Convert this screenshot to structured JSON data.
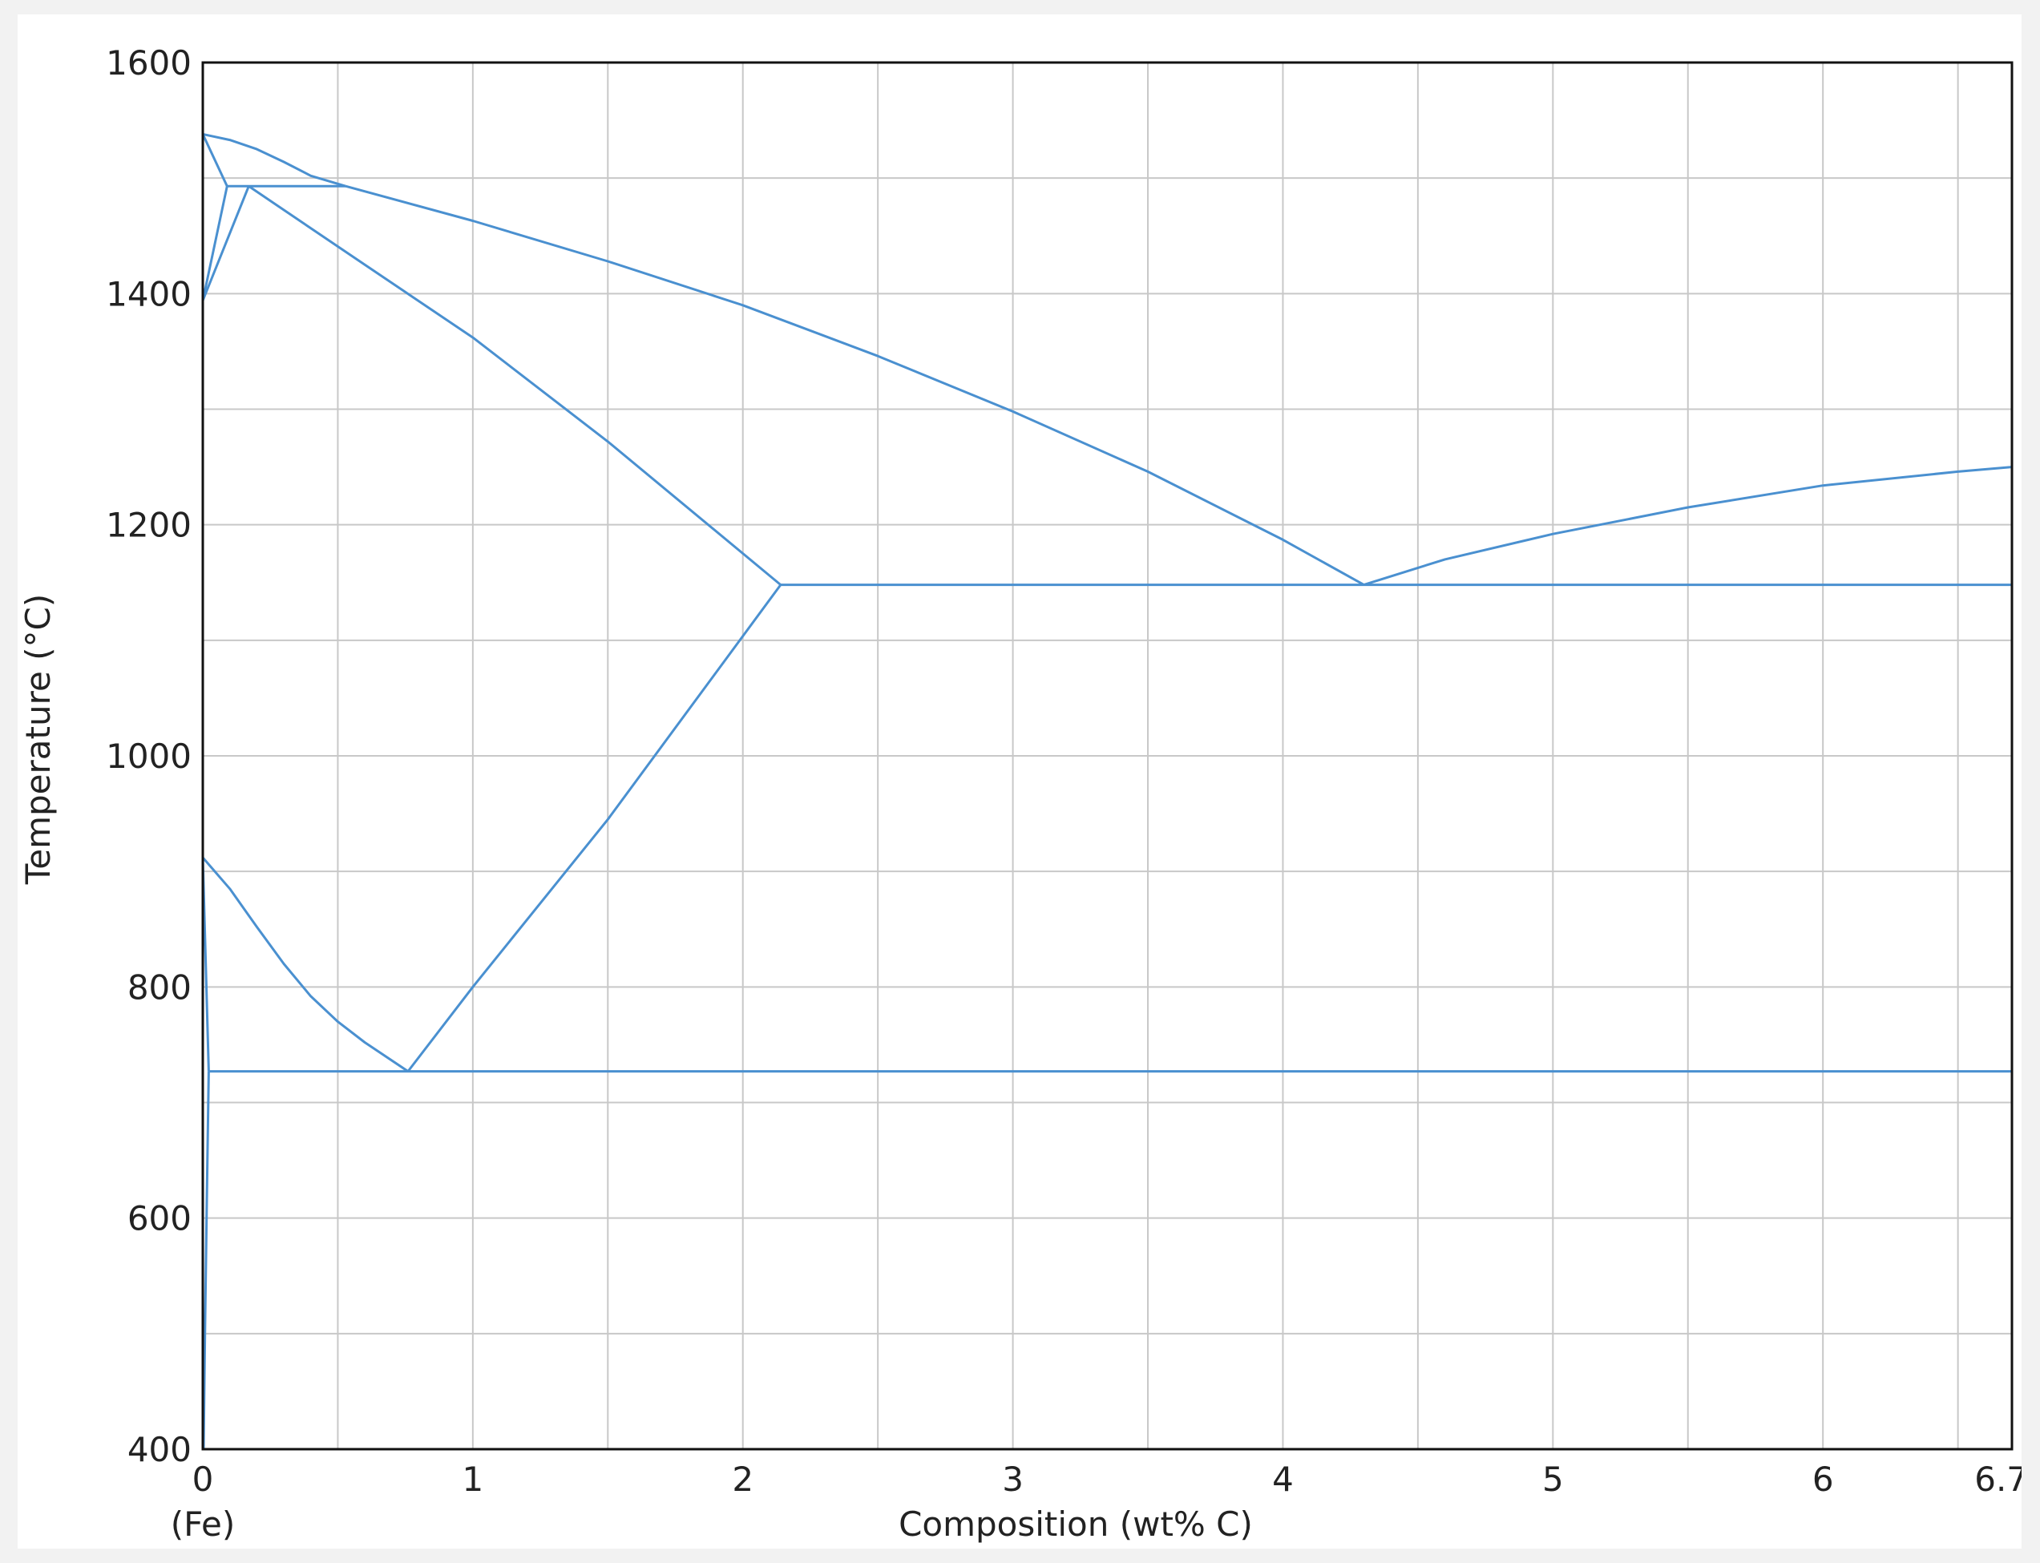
{
  "chart_data": {
    "type": "line",
    "title": "",
    "xlabel": "Composition (wt% C)",
    "ylabel": "Temperature (°C)",
    "x_origin_note": "(Fe)",
    "xlim": [
      0,
      6.7
    ],
    "ylim": [
      400,
      1600
    ],
    "x_ticks": [
      {
        "value": 0,
        "label": "0"
      },
      {
        "value": 1,
        "label": "1"
      },
      {
        "value": 2,
        "label": "2"
      },
      {
        "value": 3,
        "label": "3"
      },
      {
        "value": 4,
        "label": "4"
      },
      {
        "value": 5,
        "label": "5"
      },
      {
        "value": 6,
        "label": "6"
      },
      {
        "value": 6.7,
        "label": "6.70"
      }
    ],
    "y_ticks": [
      {
        "value": 400,
        "label": "400"
      },
      {
        "value": 600,
        "label": "600"
      },
      {
        "value": 800,
        "label": "800"
      },
      {
        "value": 1000,
        "label": "1000"
      },
      {
        "value": 1200,
        "label": "1200"
      },
      {
        "value": 1400,
        "label": "1400"
      },
      {
        "value": 1600,
        "label": "1600"
      }
    ],
    "x_grid_step": 0.5,
    "y_grid_step": 100,
    "grid": true,
    "line_color": "#4a90d0",
    "series": [
      {
        "id": "delta-liquidus",
        "x": [
          0,
          0.1,
          0.2,
          0.3,
          0.4,
          0.53
        ],
        "y": [
          1538,
          1533,
          1525,
          1514,
          1502,
          1493
        ]
      },
      {
        "id": "delta-solidus",
        "x": [
          0,
          0.09
        ],
        "y": [
          1538,
          1493
        ]
      },
      {
        "id": "peritectic-isotherm",
        "x": [
          0.09,
          0.53
        ],
        "y": [
          1493,
          1493
        ]
      },
      {
        "id": "delta-gamma-upper",
        "x": [
          0.09,
          0
        ],
        "y": [
          1493,
          1394
        ]
      },
      {
        "id": "delta-gamma-lower",
        "x": [
          0.17,
          0
        ],
        "y": [
          1493,
          1394
        ]
      },
      {
        "id": "gamma-liquidus",
        "x": [
          0.53,
          1.0,
          1.5,
          2.0,
          2.5,
          3.0,
          3.5,
          4.0,
          4.3
        ],
        "y": [
          1493,
          1463,
          1428,
          1390,
          1346,
          1298,
          1246,
          1187,
          1148
        ]
      },
      {
        "id": "gamma-solidus",
        "x": [
          0.17,
          0.6,
          1.0,
          1.5,
          2.14
        ],
        "y": [
          1493,
          1425,
          1362,
          1272,
          1148
        ]
      },
      {
        "id": "eutectic-isotherm",
        "x": [
          2.14,
          6.7
        ],
        "y": [
          1148,
          1148
        ]
      },
      {
        "id": "cementite-liquidus",
        "x": [
          4.3,
          4.6,
          5.0,
          5.5,
          6.0,
          6.5,
          6.7
        ],
        "y": [
          1148,
          1170,
          1192,
          1215,
          1234,
          1246,
          1250
        ]
      },
      {
        "id": "acm-line",
        "x": [
          2.14,
          1.5,
          1.0,
          0.76
        ],
        "y": [
          1148,
          945,
          800,
          727
        ]
      },
      {
        "id": "a3-line",
        "x": [
          0,
          0.1,
          0.2,
          0.3,
          0.4,
          0.5,
          0.6,
          0.76
        ],
        "y": [
          912,
          885,
          852,
          820,
          792,
          770,
          752,
          727
        ]
      },
      {
        "id": "alpha-boundary-upper",
        "x": [
          0,
          0.022
        ],
        "y": [
          912,
          727
        ]
      },
      {
        "id": "eutectoid-isotherm",
        "x": [
          0.022,
          6.7
        ],
        "y": [
          727,
          727
        ]
      },
      {
        "id": "alpha-solvus",
        "x": [
          0.022,
          0.015,
          0.008,
          0.003
        ],
        "y": [
          727,
          620,
          500,
          400
        ]
      }
    ]
  }
}
